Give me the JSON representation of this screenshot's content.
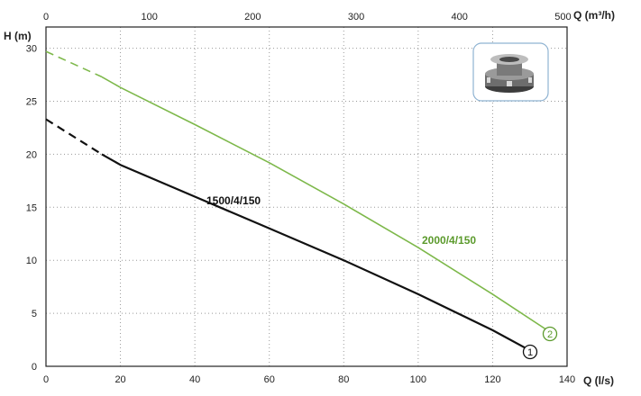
{
  "chart_data": {
    "type": "line",
    "xlabel": "Q (l/s)",
    "x2label": "Q (m³/h)",
    "ylabel": "H (m)",
    "xlim": [
      0,
      140
    ],
    "x2lim": [
      0,
      504
    ],
    "ylim": [
      0,
      32
    ],
    "x_ticks": [
      "0",
      "20",
      "40",
      "60",
      "80",
      "100",
      "120",
      "140"
    ],
    "x2_ticks": [
      "0",
      "100",
      "200",
      "300",
      "400",
      "500"
    ],
    "y_ticks": [
      "0",
      "5",
      "10",
      "15",
      "20",
      "25",
      "30"
    ],
    "grid": "dotted",
    "series": [
      {
        "name": "1500/4/150",
        "marker": "1",
        "color": "#111111",
        "x": [
          0,
          15,
          20,
          40,
          60,
          80,
          100,
          120,
          130
        ],
        "y": [
          23.3,
          20.0,
          19.0,
          16.0,
          13.0,
          10.0,
          6.8,
          3.4,
          1.5
        ],
        "dashed_until_x": 15
      },
      {
        "name": "2000/4/150",
        "marker": "2",
        "color": "#7db84a",
        "x": [
          0,
          15,
          20,
          40,
          60,
          80,
          100,
          120,
          136
        ],
        "y": [
          29.7,
          27.3,
          26.3,
          22.8,
          19.2,
          15.3,
          11.2,
          6.8,
          3.1
        ],
        "dashed_until_x": 15
      }
    ]
  },
  "inset": {
    "image": "pump-photo"
  }
}
